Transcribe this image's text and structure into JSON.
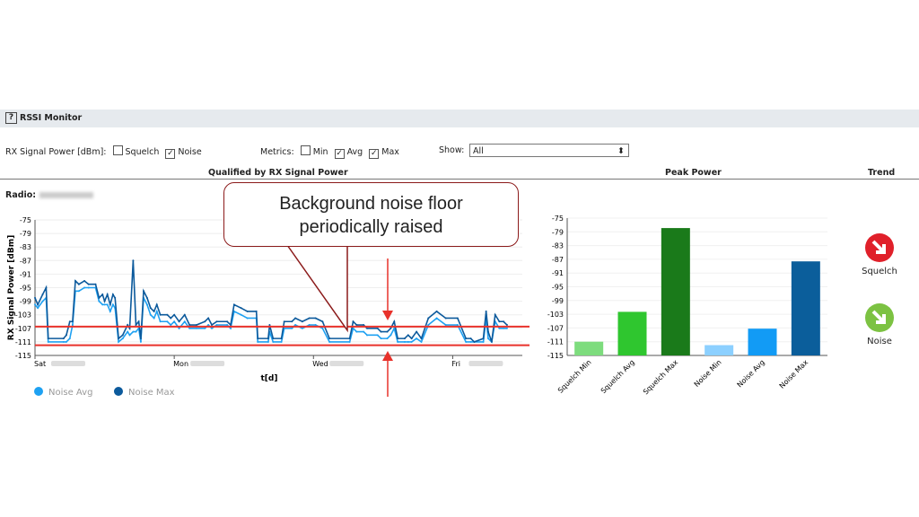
{
  "header": {
    "help_icon": "?",
    "title": "RSSI Monitor"
  },
  "controls": {
    "rx_label": "RX Signal Power [dBm]:",
    "squelch": {
      "label": "Squelch",
      "checked": false
    },
    "noise": {
      "label": "Noise",
      "checked": true
    },
    "metrics_label": "Metrics:",
    "min": {
      "label": "Min",
      "checked": false
    },
    "avg": {
      "label": "Avg",
      "checked": true
    },
    "max": {
      "label": "Max",
      "checked": true
    },
    "show_label": "Show:",
    "show_value": "All"
  },
  "sections": {
    "qualified": "Qualified by RX Signal Power",
    "peak": "Peak Power",
    "trend": "Trend"
  },
  "radio_label": "Radio:",
  "callout": {
    "line1": "Background noise floor",
    "line2": "periodically raised",
    "border_color": "#8b1a1a",
    "marker_color": "#e8322b"
  },
  "trend": {
    "squelch": {
      "label": "Squelch",
      "color": "#e0202a",
      "direction": "down-right"
    },
    "noise": {
      "label": "Noise",
      "color": "#7cc242",
      "direction": "down-right"
    }
  },
  "chart_data": [
    {
      "type": "line",
      "ylabel": "RX Signal Power [dBm]",
      "xlabel": "t[d]",
      "ylim": [
        -115,
        -75
      ],
      "yticks": [
        -75,
        -79,
        -83,
        -87,
        -91,
        -95,
        -99,
        -103,
        -107,
        -111,
        -115
      ],
      "xlim": [
        0,
        7
      ],
      "xticks": [
        {
          "x": 0,
          "label": "Sat"
        },
        {
          "x": 2,
          "label": "Mon"
        },
        {
          "x": 4,
          "label": "Wed"
        },
        {
          "x": 6,
          "label": "Fri"
        }
      ],
      "grid": true,
      "legend": "bottom-left",
      "threshold_lines": [
        -106.5,
        -112
      ],
      "x": [
        0,
        0.04,
        0.11,
        0.16,
        0.19,
        0.41,
        0.45,
        0.5,
        0.54,
        0.58,
        0.63,
        0.71,
        0.77,
        0.87,
        0.92,
        0.97,
        1.0,
        1.04,
        1.08,
        1.12,
        1.15,
        1.2,
        1.26,
        1.33,
        1.36,
        1.41,
        1.45,
        1.49,
        1.52,
        1.56,
        1.61,
        1.66,
        1.71,
        1.75,
        1.8,
        1.9,
        1.95,
        2.0,
        2.07,
        2.15,
        2.22,
        2.32,
        2.44,
        2.49,
        2.54,
        2.61,
        2.76,
        2.81,
        2.86,
        2.96,
        3.05,
        3.18,
        3.2,
        3.35,
        3.37,
        3.42,
        3.54,
        3.58,
        3.69,
        3.74,
        3.84,
        3.94,
        4.03,
        4.13,
        4.23,
        4.52,
        4.57,
        4.62,
        4.72,
        4.77,
        4.92,
        4.97,
        5.06,
        5.11,
        5.16,
        5.21,
        5.31,
        5.36,
        5.41,
        5.48,
        5.55,
        5.65,
        5.77,
        5.9,
        6.07,
        6.19,
        6.26,
        6.31,
        6.44,
        6.48,
        6.51,
        6.56,
        6.61,
        6.67,
        6.73,
        6.78
      ],
      "series": [
        {
          "name": "Noise Avg",
          "color": "#1ea1f2",
          "values": [
            -100,
            -101,
            -99,
            -98,
            -111,
            -111,
            -111,
            -110,
            -106,
            -96,
            -96,
            -95,
            -95,
            -95,
            -99,
            -100,
            -100,
            -100,
            -102,
            -100,
            -101,
            -111,
            -110,
            -108,
            -109,
            -108,
            -108,
            -107,
            -111,
            -98,
            -100,
            -103,
            -104,
            -102,
            -105,
            -105,
            -106,
            -105,
            -107,
            -105,
            -107,
            -107,
            -107,
            -106,
            -107,
            -106,
            -106,
            -107,
            -102,
            -103,
            -104,
            -104,
            -111,
            -111,
            -108,
            -111,
            -111,
            -107,
            -107,
            -106,
            -107,
            -106,
            -106,
            -107,
            -111,
            -111,
            -107,
            -108,
            -108,
            -109,
            -109,
            -110,
            -110,
            -109,
            -107,
            -111,
            -111,
            -111,
            -111,
            -110,
            -111,
            -106,
            -104,
            -106,
            -106,
            -111,
            -111,
            -111,
            -111,
            -104,
            -110,
            -111,
            -105,
            -107,
            -107,
            -107
          ]
        },
        {
          "name": "Noise Max",
          "color": "#0c5a9c",
          "values": [
            -98,
            -100,
            -97,
            -95,
            -110,
            -110,
            -109,
            -105,
            -105,
            -93,
            -94,
            -93,
            -94,
            -94,
            -98,
            -97,
            -99,
            -97,
            -100,
            -97,
            -98,
            -110,
            -109,
            -106,
            -107,
            -87,
            -106,
            -105,
            -110,
            -96,
            -98,
            -101,
            -102,
            -100,
            -103,
            -103,
            -104,
            -103,
            -105,
            -103,
            -106,
            -106,
            -105,
            -104,
            -106,
            -105,
            -105,
            -106,
            -100,
            -101,
            -102,
            -102,
            -110,
            -110,
            -106,
            -110,
            -110,
            -105,
            -105,
            -104,
            -105,
            -104,
            -104,
            -105,
            -110,
            -110,
            -105,
            -106,
            -106,
            -107,
            -107,
            -108,
            -108,
            -107,
            -105,
            -110,
            -110,
            -109,
            -110,
            -108,
            -110,
            -104,
            -102,
            -104,
            -104,
            -110,
            -110,
            -111,
            -110,
            -102,
            -108,
            -111,
            -103,
            -105,
            -105,
            -106
          ]
        }
      ]
    },
    {
      "type": "bar",
      "title": "Peak Power",
      "ylim": [
        -115,
        -75
      ],
      "yticks": [
        -75,
        -79,
        -83,
        -87,
        -91,
        -95,
        -99,
        -103,
        -107,
        -111,
        -115
      ],
      "categories": [
        "Squelch Min",
        "Squelch Avg",
        "Squelch Max",
        "Noise Min",
        "Noise Avg",
        "Noise Max"
      ],
      "values": [
        -111,
        -102.3,
        -77.9,
        -112,
        -107.2,
        -87.6
      ],
      "colors": [
        "#7ddc7d",
        "#2fc62f",
        "#1a7a1a",
        "#8cd0ff",
        "#129bf5",
        "#0b5e9b"
      ]
    }
  ]
}
